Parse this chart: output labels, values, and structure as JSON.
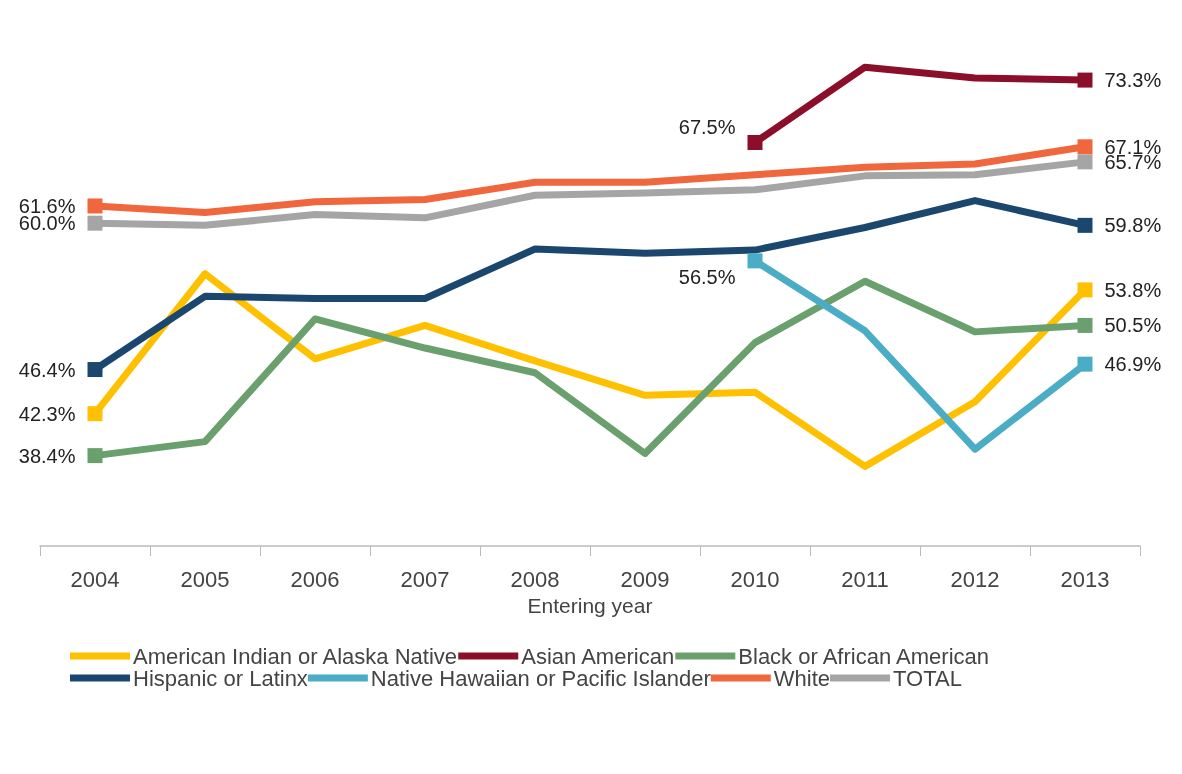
{
  "chart_data": {
    "type": "line",
    "xlabel": "Entering year",
    "categories": [
      "2004",
      "2005",
      "2006",
      "2007",
      "2008",
      "2009",
      "2010",
      "2011",
      "2012",
      "2013"
    ],
    "legend": "bottom",
    "grid": false,
    "series": [
      {
        "name": "American Indian or Alaska Native",
        "color": "#ffc000",
        "values": [
          42.3,
          55.3,
          47.4,
          50.5,
          47.2,
          44.0,
          44.3,
          37.4,
          43.4,
          53.8
        ],
        "value_labels": [
          "42.3%",
          null,
          null,
          null,
          null,
          null,
          null,
          null,
          null,
          "53.8%"
        ]
      },
      {
        "name": "Asian American",
        "color": "#8b0e2a",
        "values": [
          null,
          null,
          null,
          null,
          null,
          null,
          67.5,
          74.5,
          73.5,
          73.3
        ],
        "value_labels": [
          null,
          null,
          null,
          null,
          null,
          null,
          "67.5%",
          null,
          null,
          "73.3%"
        ]
      },
      {
        "name": "Black or African American",
        "color": "#6a9f6e",
        "values": [
          38.4,
          39.7,
          51.1,
          48.4,
          46.1,
          38.6,
          48.9,
          54.6,
          49.9,
          50.5
        ],
        "value_labels": [
          "38.4%",
          null,
          null,
          null,
          null,
          null,
          null,
          null,
          null,
          "50.5%"
        ]
      },
      {
        "name": "Hispanic or Latinx",
        "color": "#1b466e",
        "values": [
          46.4,
          53.2,
          53.0,
          53.0,
          57.6,
          57.2,
          57.5,
          59.6,
          62.1,
          59.8
        ],
        "value_labels": [
          "46.4%",
          null,
          null,
          null,
          null,
          null,
          null,
          null,
          null,
          "59.8%"
        ]
      },
      {
        "name": "Native Hawaiian or Pacific Islander",
        "color": "#4bacc6",
        "values": [
          null,
          null,
          null,
          null,
          null,
          null,
          56.5,
          50.0,
          39.0,
          46.9
        ],
        "value_labels": [
          null,
          null,
          null,
          null,
          null,
          null,
          "56.5%",
          null,
          null,
          "46.9%"
        ]
      },
      {
        "name": "White",
        "color": "#f0673e",
        "values": [
          61.6,
          61.0,
          62.0,
          62.2,
          63.8,
          63.8,
          64.5,
          65.2,
          65.5,
          67.1
        ],
        "value_labels": [
          "61.6%",
          null,
          null,
          null,
          null,
          null,
          null,
          null,
          null,
          "67.1%"
        ]
      },
      {
        "name": "TOTAL",
        "color": "#a5a5a5",
        "values": [
          60.0,
          59.8,
          60.8,
          60.5,
          62.6,
          62.8,
          63.1,
          64.4,
          64.5,
          65.7
        ],
        "value_labels": [
          "60.0%",
          null,
          null,
          null,
          null,
          null,
          null,
          null,
          null,
          "65.7%"
        ]
      }
    ]
  }
}
